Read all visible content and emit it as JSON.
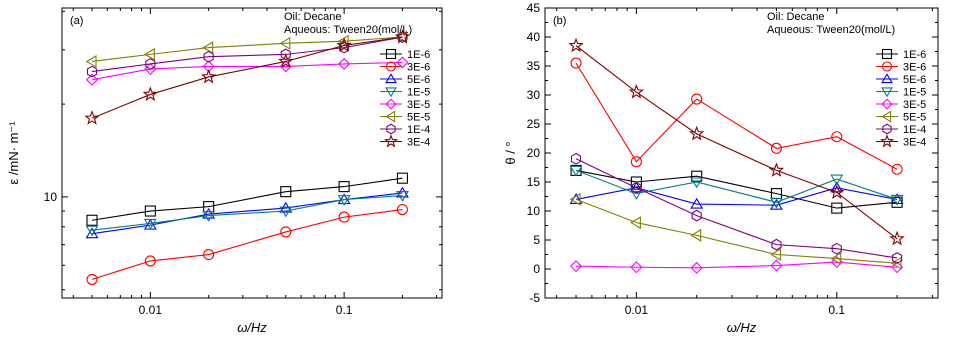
{
  "chart_data": [
    {
      "type": "line",
      "panel_label": "(a)",
      "annotations": [
        "Oil: Decane",
        "Aqueous: Tween20(mol/L)"
      ],
      "xlabel": "ω/Hz",
      "ylabel": "ε /mN· m⁻¹",
      "x_scale": "log",
      "y_scale": "log",
      "xlim": [
        0.0035,
        0.32
      ],
      "ylim": [
        4.7,
        41
      ],
      "x_ticks": [
        0.01,
        0.1
      ],
      "x_tick_labels": [
        "0.01",
        "0.1"
      ],
      "y_ticks": [
        10
      ],
      "y_tick_labels": [
        "10"
      ],
      "legend_position": "right",
      "x": [
        0.005,
        0.01,
        0.02,
        0.05,
        0.1,
        0.2
      ],
      "series": [
        {
          "name": "1E-6",
          "color": "#000000",
          "marker": "square",
          "values": [
            8.4,
            9.0,
            9.3,
            10.4,
            10.8,
            11.5
          ]
        },
        {
          "name": "3E-6",
          "color": "#ff0000",
          "marker": "circle",
          "values": [
            5.4,
            6.2,
            6.5,
            7.7,
            8.6,
            9.1
          ]
        },
        {
          "name": "5E-6",
          "color": "#0000ff",
          "marker": "triangle-up",
          "values": [
            7.6,
            8.1,
            8.8,
            9.2,
            9.8,
            10.3
          ]
        },
        {
          "name": "1E-5",
          "color": "#008080",
          "marker": "triangle-down",
          "values": [
            7.8,
            8.2,
            8.7,
            9.0,
            9.8,
            10.1
          ]
        },
        {
          "name": "3E-5",
          "color": "#ff00ff",
          "marker": "diamond",
          "values": [
            24.0,
            26.0,
            26.5,
            26.5,
            27.0,
            27.3
          ]
        },
        {
          "name": "5E-5",
          "color": "#808000",
          "marker": "triangle-left",
          "values": [
            27.5,
            29.0,
            30.5,
            31.5,
            32.0,
            33.0
          ]
        },
        {
          "name": "1E-4",
          "color": "#800080",
          "marker": "hexagon",
          "values": [
            25.5,
            27.0,
            28.5,
            29.0,
            30.5,
            33.0
          ]
        },
        {
          "name": "3E-4",
          "color": "#800000",
          "marker": "star",
          "values": [
            18.0,
            21.5,
            24.5,
            27.5,
            31.0,
            33.0
          ]
        }
      ]
    },
    {
      "type": "line",
      "panel_label": "(b)",
      "annotations": [
        "Oil: Decane",
        "Aqueous: Tween20(mol/L)"
      ],
      "xlabel": "ω/Hz",
      "ylabel": "θ / °",
      "x_scale": "log",
      "y_scale": "linear",
      "xlim": [
        0.0035,
        0.32
      ],
      "ylim": [
        -5,
        45
      ],
      "x_ticks": [
        0.01,
        0.1
      ],
      "x_tick_labels": [
        "0.01",
        "0.1"
      ],
      "y_ticks": [
        -5,
        0,
        5,
        10,
        15,
        20,
        25,
        30,
        35,
        40,
        45
      ],
      "y_tick_labels": [
        "-5",
        "0",
        "5",
        "10",
        "15",
        "20",
        "25",
        "30",
        "35",
        "40",
        "45"
      ],
      "legend_position": "right",
      "x": [
        0.005,
        0.01,
        0.02,
        0.05,
        0.1,
        0.2
      ],
      "series": [
        {
          "name": "1E-6",
          "color": "#000000",
          "marker": "square",
          "values": [
            17.0,
            15.0,
            16.0,
            13.0,
            10.5,
            11.5
          ]
        },
        {
          "name": "3E-6",
          "color": "#ff0000",
          "marker": "circle",
          "values": [
            35.5,
            18.5,
            29.3,
            20.8,
            22.8,
            17.2
          ]
        },
        {
          "name": "5E-6",
          "color": "#0000ff",
          "marker": "triangle-up",
          "values": [
            12.0,
            14.0,
            11.2,
            11.0,
            14.0,
            12.0
          ]
        },
        {
          "name": "1E-5",
          "color": "#008080",
          "marker": "triangle-down",
          "values": [
            17.0,
            13.0,
            15.0,
            11.5,
            15.5,
            12.0
          ]
        },
        {
          "name": "3E-5",
          "color": "#ff00ff",
          "marker": "diamond",
          "values": [
            0.5,
            0.3,
            0.2,
            0.6,
            1.2,
            0.3
          ]
        },
        {
          "name": "5E-5",
          "color": "#808000",
          "marker": "triangle-left",
          "values": [
            12.0,
            8.0,
            5.8,
            2.5,
            1.8,
            1.0
          ]
        },
        {
          "name": "1E-4",
          "color": "#800080",
          "marker": "hexagon",
          "values": [
            19.0,
            14.0,
            9.2,
            4.2,
            3.5,
            1.9
          ]
        },
        {
          "name": "3E-4",
          "color": "#800000",
          "marker": "star",
          "values": [
            38.5,
            30.5,
            23.3,
            17.0,
            13.2,
            5.2
          ]
        }
      ]
    }
  ]
}
